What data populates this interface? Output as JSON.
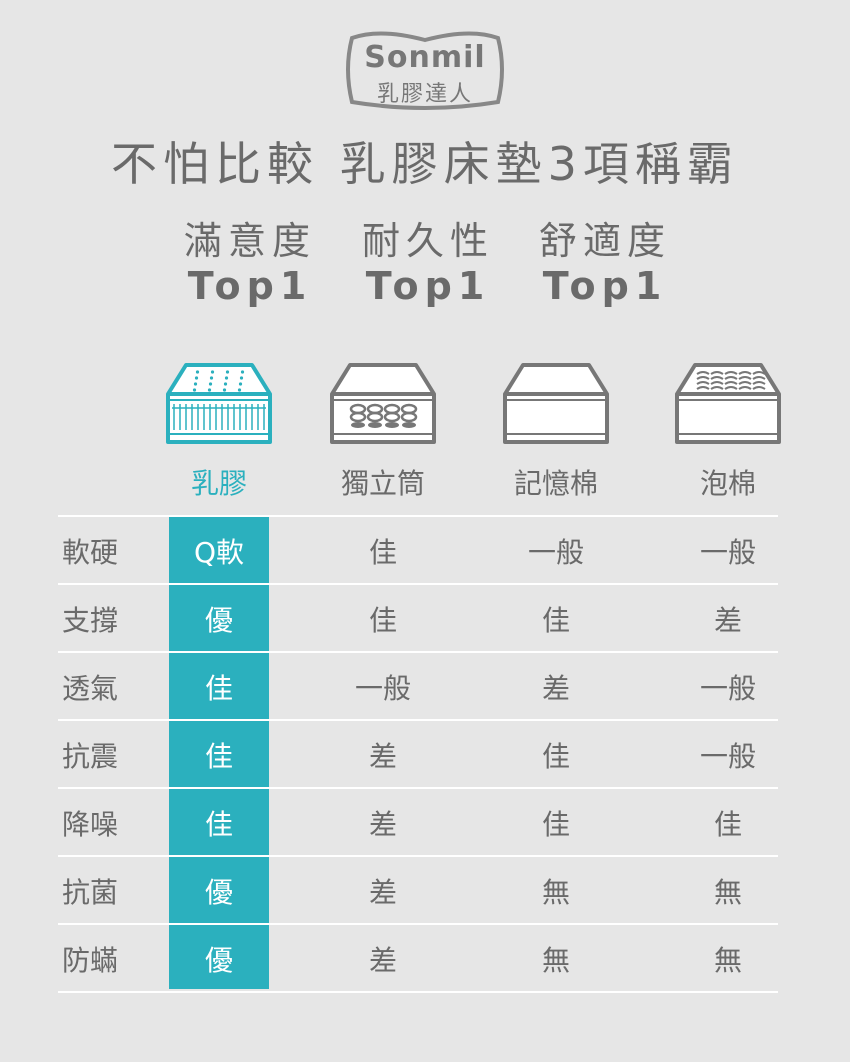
{
  "logo": {
    "brand": "Sonmil",
    "tagline": "乳膠達人"
  },
  "headline": "不怕比較 乳膠床墊3項稱霸",
  "awards": [
    {
      "label": "滿意度",
      "rank": "Top1"
    },
    {
      "label": "耐久性",
      "rank": "Top1"
    },
    {
      "label": "舒適度",
      "rank": "Top1"
    }
  ],
  "colors": {
    "accent": "#2bb0be",
    "text": "#6a6a6a",
    "background": "#e6e6e6"
  },
  "columns": [
    {
      "name": "乳膠",
      "icon": "latex-mattress-icon",
      "highlight": true
    },
    {
      "name": "獨立筒",
      "icon": "pocket-spring-mattress-icon"
    },
    {
      "name": "記憶棉",
      "icon": "memory-foam-mattress-icon"
    },
    {
      "name": "泡棉",
      "icon": "foam-mattress-icon"
    }
  ],
  "rows": [
    {
      "label": "軟硬",
      "values": [
        "Q軟",
        "佳",
        "一般",
        "一般"
      ]
    },
    {
      "label": "支撐",
      "values": [
        "優",
        "佳",
        "佳",
        "差"
      ]
    },
    {
      "label": "透氣",
      "values": [
        "佳",
        "一般",
        "差",
        "一般"
      ]
    },
    {
      "label": "抗震",
      "values": [
        "佳",
        "差",
        "佳",
        "一般"
      ]
    },
    {
      "label": "降噪",
      "values": [
        "佳",
        "差",
        "佳",
        "佳"
      ]
    },
    {
      "label": "抗菌",
      "values": [
        "優",
        "差",
        "無",
        "無"
      ]
    },
    {
      "label": "防蟎",
      "values": [
        "優",
        "差",
        "無",
        "無"
      ]
    }
  ]
}
